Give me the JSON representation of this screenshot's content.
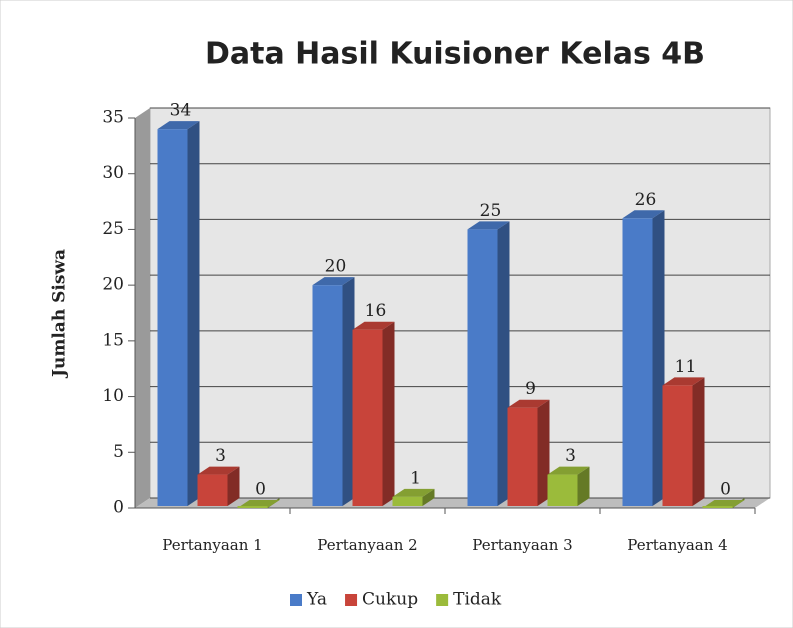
{
  "chart_data": {
    "type": "bar3d",
    "title": "Data Hasil Kuisioner Kelas 4B",
    "y_label": "Jumlah Siswa",
    "categories": [
      "Pertanyaan 1",
      "Pertanyaan 2",
      "Pertanyaan 3",
      "Pertanyaan 4"
    ],
    "series": [
      {
        "name": "Ya",
        "color": "#4a7bc8",
        "values": [
          34,
          20,
          25,
          26
        ]
      },
      {
        "name": "Cukup",
        "color": "#c8443a",
        "values": [
          3,
          16,
          9,
          11
        ]
      },
      {
        "name": "Tidak",
        "color": "#9bbb3b",
        "values": [
          0,
          1,
          3,
          0
        ]
      }
    ],
    "ylim": [
      0,
      35
    ],
    "yticks": [
      0,
      5,
      10,
      15,
      20,
      25,
      30,
      35
    ],
    "grid": true,
    "legend": "bottom"
  }
}
